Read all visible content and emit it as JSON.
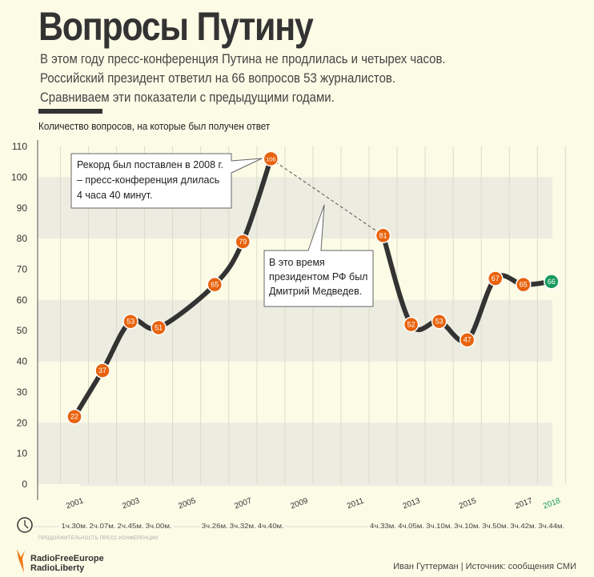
{
  "header": {
    "title": "Вопросы Путину",
    "subtitle": [
      "В этом году пресс-конференция Путина не продлилась и четырех часов.",
      "Российский президент ответил на 66 вопросов 53 журналистов.",
      "Сравниваем эти показатели с предыдущими годами."
    ]
  },
  "chart_data": {
    "type": "line",
    "title": "Вопросы Путину",
    "ylabel": "Количество вопросов, на которые был получен ответ",
    "ylim": [
      0,
      110
    ],
    "yticks": [
      0,
      10,
      20,
      30,
      40,
      50,
      60,
      70,
      80,
      90,
      100,
      110
    ],
    "xticks": [
      "2001",
      "2003",
      "2005",
      "2007",
      "2009",
      "2011",
      "2013",
      "2015",
      "2017",
      "2018"
    ],
    "x": [
      2001,
      2002,
      2003,
      2004,
      2006,
      2007,
      2008,
      2012,
      2013,
      2014,
      2015,
      2016,
      2017,
      2018
    ],
    "values": [
      22,
      37,
      53,
      51,
      65,
      79,
      106,
      81,
      52,
      53,
      47,
      67,
      65,
      66
    ],
    "labels": [
      "22",
      "37",
      "53",
      "51",
      "65",
      "79",
      "106",
      "81",
      "52",
      "53",
      "47",
      "67",
      "65",
      "66"
    ],
    "durations": [
      "1ч.30м.",
      "2ч.07м.",
      "2ч.45м.",
      "3ч.00м.",
      "3ч.26м.",
      "3ч.32м.",
      "4ч.40м.",
      "4ч.33м.",
      "4ч.05м.",
      "3ч.10м.",
      "3ч.10м.",
      "3ч.50м.",
      "3ч.42м.",
      "3ч.44м."
    ],
    "duration_label": "ПРОДОЛЖИТЕЛЬНОСТЬ ПРЕСС-КОНФЕРЕНЦИИ",
    "annotations": [
      {
        "text": [
          "Рекорд был поставлен в 2008 г.",
          "– пресс-конференция длилась",
          " 4 часа 40 минут."
        ]
      },
      {
        "text": [
          "В это время",
          "президентом РФ был",
          "Дмитрий Медведев."
        ]
      }
    ],
    "colors": {
      "point": "#e8620c",
      "current": "#1a9a5c",
      "line": "#333333",
      "band": "#ecece0"
    }
  },
  "footer": {
    "credit": "Иван Гуттерман | Источник: сообщения СМИ",
    "logo": [
      "RadioFreeEurope",
      "RadioLiberty"
    ]
  }
}
